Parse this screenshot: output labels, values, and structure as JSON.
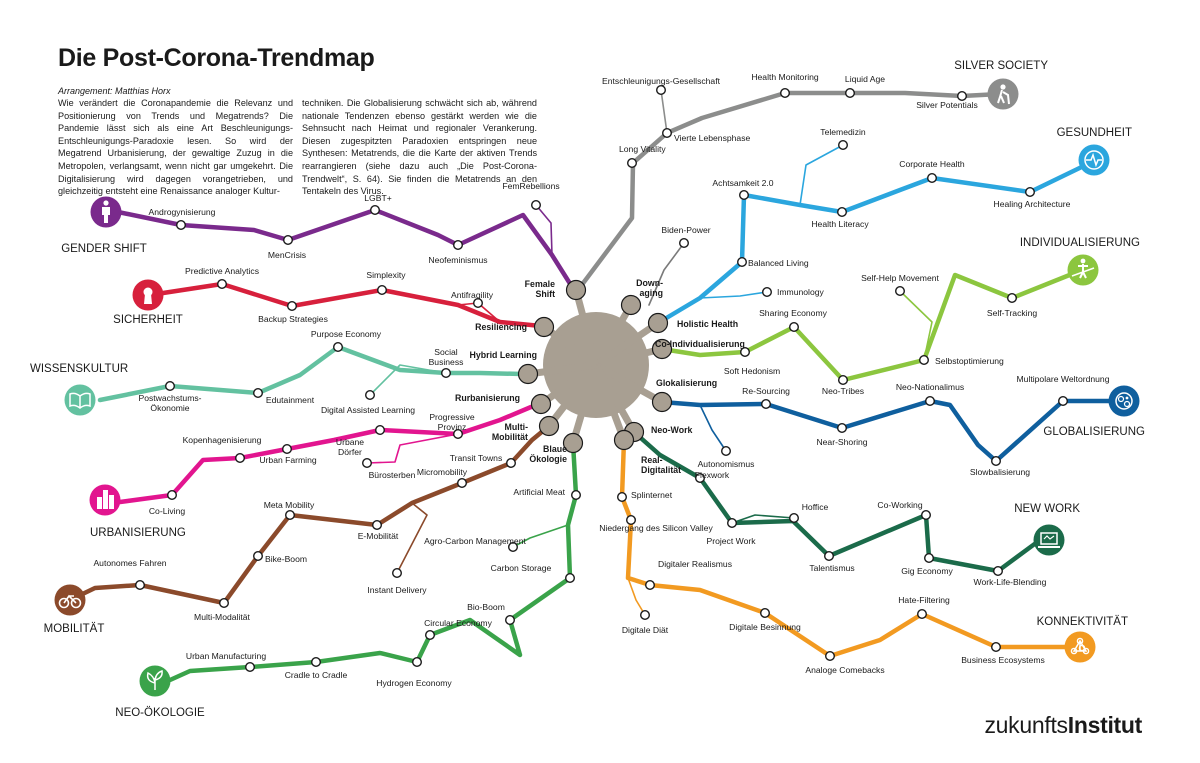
{
  "header": {
    "title": "Die Post-Corona-Trendmap",
    "arrangement": "Arrangement: Matthias Horx",
    "intro_col1": "Wie verändert die Coronapandemie die Relevanz und Positionierung von Trends und Megatrends? Die Pandemie lässt sich als eine Art Beschleunigungs-Entschleunigungs-Paradoxie lesen. So wird der Megatrend Urbanisierung, der gewaltige Zuzug in die Metropolen, verlangsamt, wenn nicht gar umgekehrt. Die Digitalisierung wird dagegen vorangetrieben, und gleichzeitig entsteht eine Renaissance analoger Kultur-",
    "intro_col2": "techniken. Die Globalisierung schwächt sich ab, während nationale Tendenzen ebenso gestärkt werden wie die Sehnsucht nach Heimat und regionaler Verankerung. Diesen zugespitzten Paradoxien entspringen neue Synthesen: Metatrends, die die Karte der aktiven Trends rearrangieren (siehe dazu auch „Die Post-Corona-Trendwelt“, S. 64). Sie finden die Metatrends an den Tentakeln des Virus."
  },
  "logo": {
    "light": "zukunfts",
    "bold": "Institut"
  },
  "megatrends": [
    {
      "label": "SILVER SOCIETY",
      "color": "#8c8d8c",
      "icon": "elderly-walking-icon"
    },
    {
      "label": "GESUNDHEIT",
      "color": "#2ba6de",
      "icon": "heartbeat-icon"
    },
    {
      "label": "INDIVIDUALISIERUNG",
      "color": "#8cc63f",
      "icon": "person-on-rope-icon"
    },
    {
      "label": "GLOBALISIERUNG",
      "color": "#0f5f9e",
      "icon": "globe-network-icon"
    },
    {
      "label": "NEW WORK",
      "color": "#1b6b4a",
      "icon": "laptop-icon"
    },
    {
      "label": "KONNEKTIVITÄT",
      "color": "#f29a21",
      "icon": "network-nodes-icon"
    },
    {
      "label": "NEO-ÖKOLOGIE",
      "color": "#3aa34a",
      "icon": "sprouting-plant-icon"
    },
    {
      "label": "MOBILITÄT",
      "color": "#8b4a2b",
      "icon": "bicycle-icon"
    },
    {
      "label": "URBANISIERUNG",
      "color": "#e2158f",
      "icon": "city-buildings-icon"
    },
    {
      "label": "WISSENSKULTUR",
      "color": "#63c1a0",
      "icon": "open-book-icon"
    },
    {
      "label": "SICHERHEIT",
      "color": "#d7203c",
      "icon": "keyhole-icon"
    },
    {
      "label": "GENDER SHIFT",
      "color": "#7a2a8c",
      "icon": "gender-person-icon"
    }
  ],
  "metatrends": [
    "Female Shift",
    "Down-aging",
    "Holistic Health",
    "Co-Individualisierung",
    "Glokalisierung",
    "Neo-Work",
    "Real-Digitalität",
    "Blaue Ökologie",
    "Multi-Mobilität",
    "Rurbanisierung",
    "Hybrid Learning",
    "Resiliencing"
  ],
  "trends": {
    "silver": [
      "Entschleunigungs-Gesellschaft",
      "Vierte Lebensphase",
      "Long Vitality",
      "Health Monitoring",
      "Liquid Age",
      "Silver Potentials"
    ],
    "health": [
      "Telemedizin",
      "Achtsamkeit 2.0",
      "Corporate Health",
      "Health Literacy",
      "Healing Architecture",
      "Balanced Living",
      "Immunology",
      "Biden-Power"
    ],
    "individual": [
      "Self-Help Movement",
      "Self-Tracking",
      "Selbstoptimierung",
      "Sharing Economy",
      "Soft Hedonism",
      "Neo-Tribes"
    ],
    "global": [
      "Re-Sourcing",
      "Neo-Nationalimus",
      "Multipolare Weltordnung",
      "Near-Shoring",
      "Slowbalisierung",
      "Autonomismus"
    ],
    "work": [
      "Flexwork",
      "Hoffice",
      "Co-Working",
      "Project Work",
      "Talentismus",
      "Gig Economy",
      "Work-Life-Blending"
    ],
    "konnekt": [
      "Splinternet",
      "Niedergang des Silicon Valley",
      "Digitaler Realismus",
      "Digitale Diät",
      "Digitale Besinnung",
      "Hate-Filtering",
      "Analoge Comebacks",
      "Business Ecosystems"
    ],
    "neooeko": [
      "Artificial Meat",
      "Agro-Carbon Management",
      "Carbon Storage",
      "Bio-Boom",
      "Circular Economy",
      "Hydrogen Economy",
      "Cradle to Cradle",
      "Urban Manufacturing"
    ],
    "mobil": [
      "Transit Towns",
      "Micromobility",
      "Meta Mobility",
      "E-Mobilität",
      "Instant Delivery",
      "Bike-Boom",
      "Autonomes Fahren",
      "Multi-Modalität"
    ],
    "urban": [
      "Progressive Provinz",
      "Urbane Dörfer",
      "Bürosterben",
      "Kopenhagenisierung",
      "Urban Farming",
      "Co-Living"
    ],
    "wissen": [
      "Purpose Economy",
      "Social Business",
      "Digital Assisted Learning",
      "Edutainment",
      "Postwachstums-Ökonomie"
    ],
    "sicher": [
      "Predictive Analytics",
      "Simplexity",
      "Antifragility",
      "Backup Strategies"
    ],
    "gender": [
      "FemRebellions",
      "LGBT+",
      "Androgynisierung",
      "MenCrisis",
      "Neofeminismus"
    ]
  }
}
